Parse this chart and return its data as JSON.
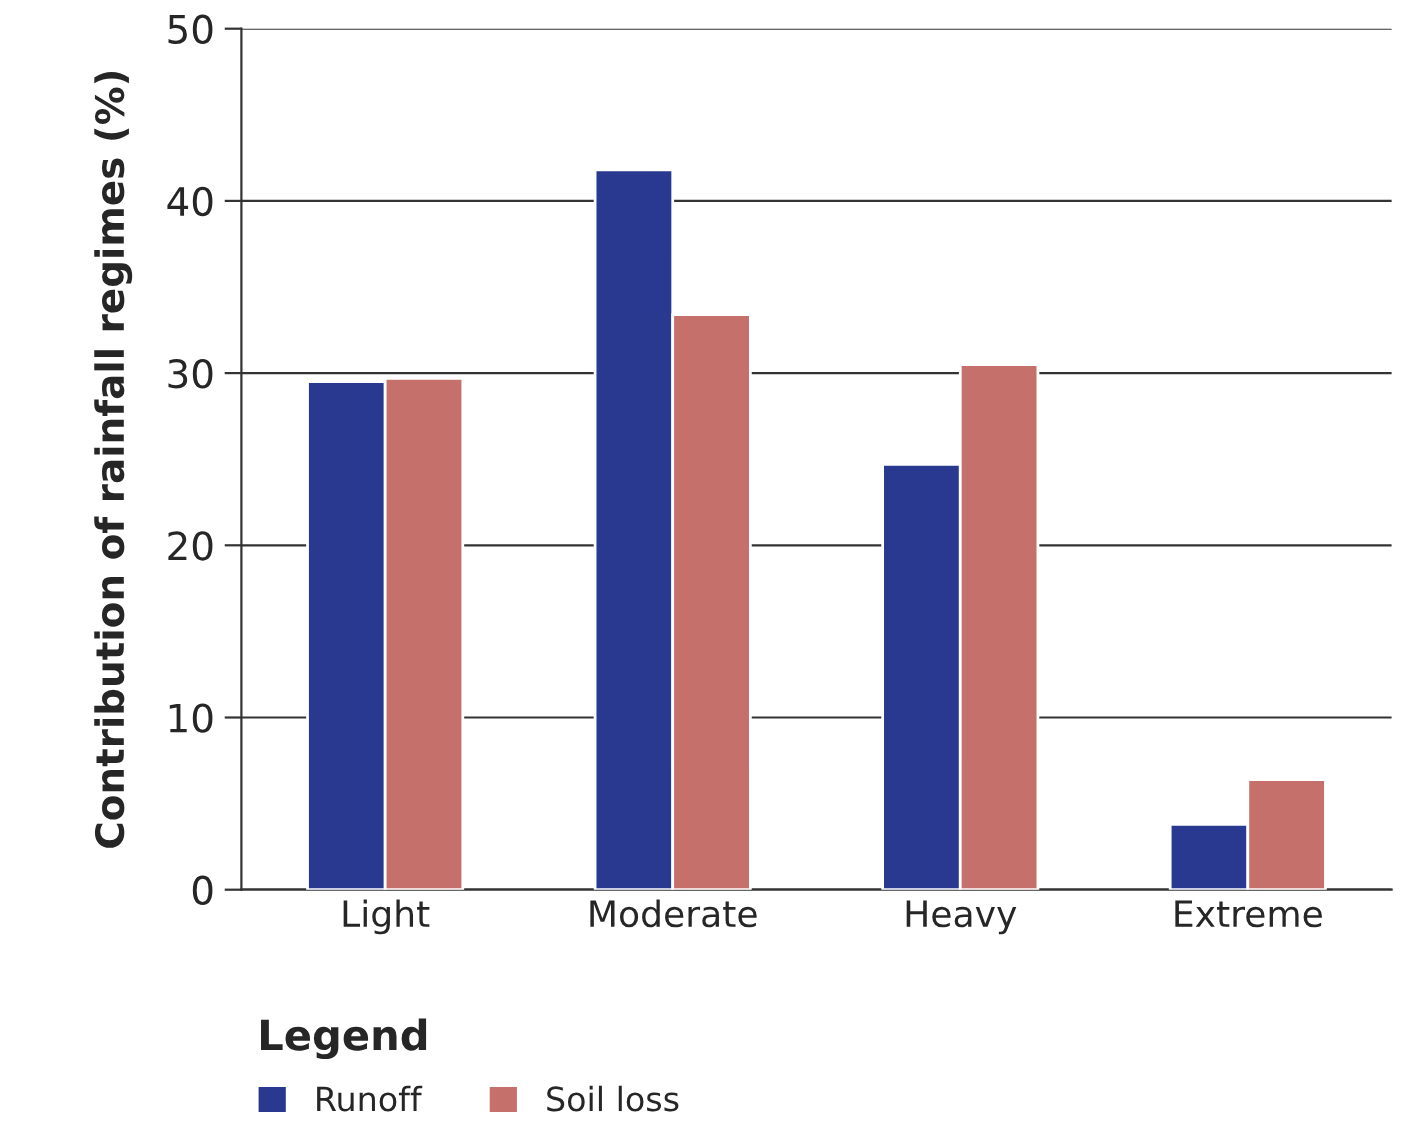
{
  "chart_data": {
    "type": "bar",
    "ylabel": "Contribution of rainfall regimes (%)",
    "categories": [
      "Light",
      "Moderate",
      "Heavy",
      "Extreme"
    ],
    "series": [
      {
        "name": "Runoff",
        "color": "#293990",
        "values": [
          29.5,
          41.8,
          24.7,
          3.8
        ]
      },
      {
        "name": "Soil loss",
        "color": "#c5706b",
        "values": [
          29.7,
          33.4,
          30.5,
          6.4
        ]
      }
    ],
    "ylim": [
      0,
      50
    ],
    "yticks": [
      0,
      10,
      20,
      30,
      40,
      50
    ],
    "grid": "y",
    "legend": "bottom",
    "legend_title": "Legend"
  }
}
